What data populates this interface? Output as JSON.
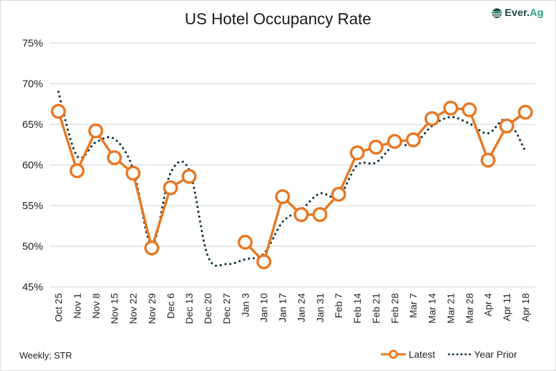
{
  "chart_data": {
    "type": "line",
    "title": "US Hotel Occupancy Rate",
    "xlabel": "",
    "ylabel": "",
    "ylim": [
      45,
      75
    ],
    "yticks": [
      "45%",
      "50%",
      "55%",
      "60%",
      "65%",
      "70%",
      "75%"
    ],
    "grid": true,
    "legend_placement": "bottom-right",
    "categories": [
      "Oct 25",
      "Nov 1",
      "Nov 8",
      "Nov 15",
      "Nov 22",
      "Nov 29",
      "Dec 6",
      "Dec 13",
      "Dec 20",
      "Dec 27",
      "Jan 3",
      "Jan 10",
      "Jan 17",
      "Jan 24",
      "Jan 31",
      "Feb 7",
      "Feb 14",
      "Feb 21",
      "Feb 28",
      "Mar 7",
      "Mar 14",
      "Mar 21",
      "Mar 28",
      "Apr 4",
      "Apr 11",
      "Apr 18"
    ],
    "series": [
      {
        "name": "Latest",
        "color": "#e87722",
        "style": "solid-with-open-circles",
        "values": [
          66.6,
          59.3,
          64.2,
          60.9,
          59.0,
          49.8,
          57.2,
          58.6,
          null,
          null,
          50.5,
          48.1,
          56.1,
          53.9,
          53.9,
          56.4,
          61.5,
          62.2,
          62.9,
          63.1,
          65.7,
          67.0,
          66.8,
          60.6,
          64.8,
          66.5
        ]
      },
      {
        "name": "Year Prior",
        "color": "#0f3340",
        "style": "dotted",
        "values": [
          69.0,
          61.1,
          62.8,
          63.2,
          59.5,
          50.2,
          59.0,
          59.4,
          48.8,
          47.8,
          48.4,
          49.1,
          53.0,
          54.5,
          56.5,
          56.1,
          60.0,
          60.3,
          62.5,
          62.5,
          64.8,
          65.9,
          65.1,
          63.9,
          65.6,
          61.7
        ]
      }
    ]
  },
  "footer": {
    "source_note": "Weekly; STR"
  },
  "logo": {
    "text_ever": "Ever.",
    "text_ag": "Ag"
  }
}
